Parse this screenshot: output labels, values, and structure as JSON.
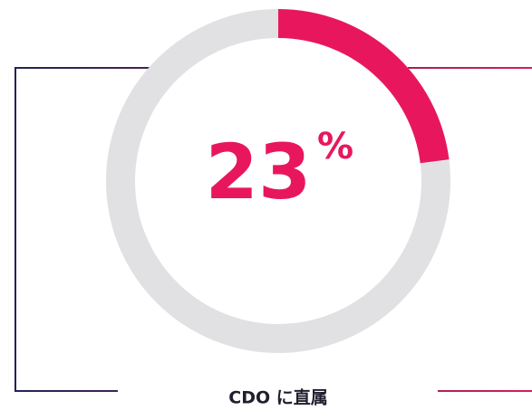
{
  "chart_data": {
    "type": "donut",
    "values": [
      23
    ],
    "unit": "%",
    "label": "CDO に直属",
    "color": "#e8175d",
    "track_color": "#e1e1e3"
  }
}
